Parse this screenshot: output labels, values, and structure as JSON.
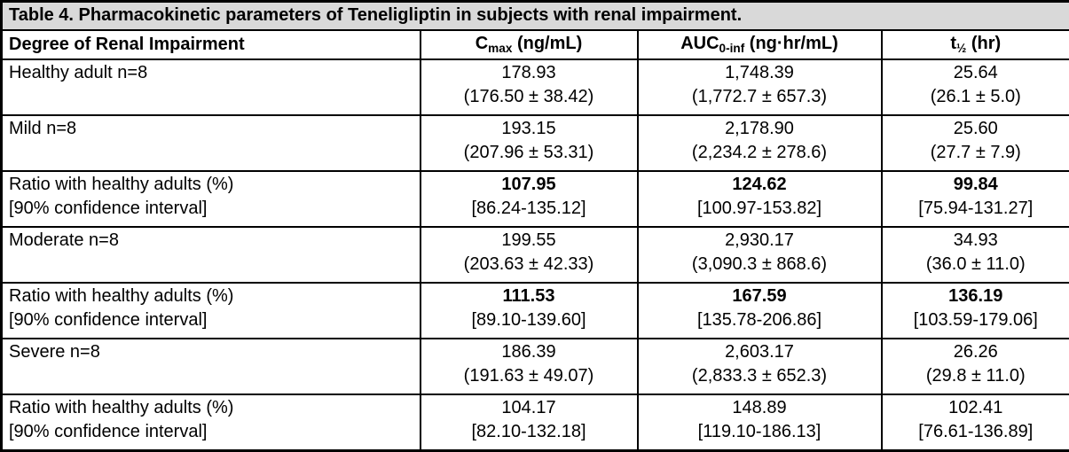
{
  "title": "Table 4. Pharmacokinetic parameters of Teneligliptin in subjects with renal impairment.",
  "header": {
    "col1": "Degree of Renal Impairment",
    "col2": {
      "pre": "C",
      "sub": "max",
      "post": " (ng/mL)"
    },
    "col3": {
      "pre": "AUC",
      "sub": "0-inf",
      "post": " (ng·hr/mL)"
    },
    "col4": {
      "pre": "t",
      "sub": "½",
      "post": " (hr)"
    }
  },
  "colors": {
    "title_bg": "#d9d9d9",
    "border": "#000000",
    "text": "#000000",
    "row_bg": "#ffffff"
  },
  "rows": [
    {
      "label_lines": [
        "Healthy adult n=8",
        ""
      ],
      "bold_values": false,
      "cmax": [
        "178.93",
        "(176.50 ± 38.42)"
      ],
      "auc": [
        "1,748.39",
        "(1,772.7 ± 657.3)"
      ],
      "t_half": [
        "25.64",
        "(26.1 ± 5.0)"
      ]
    },
    {
      "label_lines": [
        "Mild n=8",
        ""
      ],
      "bold_values": false,
      "cmax": [
        "193.15",
        "(207.96 ± 53.31)"
      ],
      "auc": [
        "2,178.90",
        "(2,234.2 ± 278.6)"
      ],
      "t_half": [
        "25.60",
        "(27.7 ± 7.9)"
      ]
    },
    {
      "label_lines": [
        "Ratio with healthy adults (%)",
        "[90% confidence interval]"
      ],
      "bold_values": true,
      "cmax": [
        "107.95",
        "[86.24-135.12]"
      ],
      "auc": [
        "124.62",
        "[100.97-153.82]"
      ],
      "t_half": [
        "99.84",
        "[75.94-131.27]"
      ]
    },
    {
      "label_lines": [
        "Moderate n=8",
        ""
      ],
      "bold_values": false,
      "cmax": [
        "199.55",
        "(203.63 ± 42.33)"
      ],
      "auc": [
        "2,930.17",
        "(3,090.3 ± 868.6)"
      ],
      "t_half": [
        "34.93",
        "(36.0 ± 11.0)"
      ]
    },
    {
      "label_lines": [
        "Ratio with healthy adults (%)",
        "[90% confidence interval]"
      ],
      "bold_values": true,
      "cmax": [
        "111.53",
        "[89.10-139.60]"
      ],
      "auc": [
        "167.59",
        "[135.78-206.86]"
      ],
      "t_half": [
        "136.19",
        "[103.59-179.06]"
      ]
    },
    {
      "label_lines": [
        "Severe n=8",
        ""
      ],
      "bold_values": false,
      "cmax": [
        "186.39",
        "(191.63 ± 49.07)"
      ],
      "auc": [
        "2,603.17",
        "(2,833.3 ± 652.3)"
      ],
      "t_half": [
        "26.26",
        "(29.8 ± 11.0)"
      ]
    },
    {
      "label_lines": [
        "Ratio with healthy adults (%)",
        "[90% confidence interval]"
      ],
      "bold_values": false,
      "cmax": [
        "104.17",
        "[82.10-132.18]"
      ],
      "auc": [
        "148.89",
        "[119.10-186.13]"
      ],
      "t_half": [
        "102.41",
        "[76.61-136.89]"
      ]
    }
  ]
}
